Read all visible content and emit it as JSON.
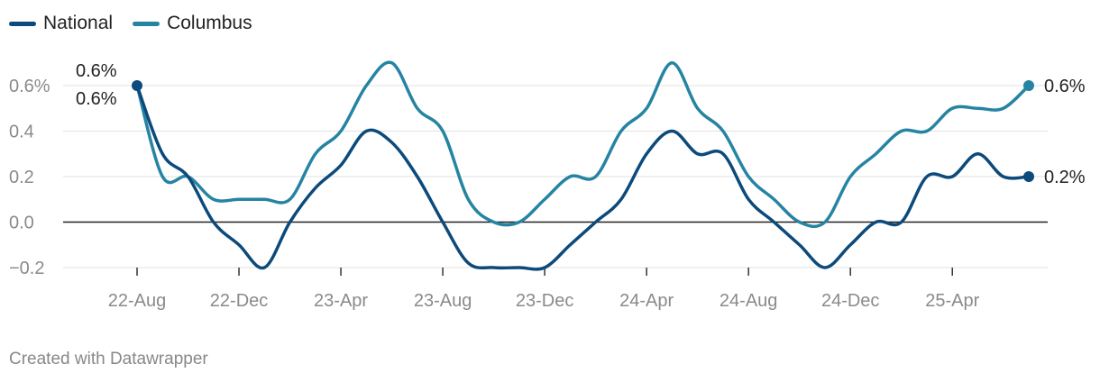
{
  "legend": [
    {
      "name": "National",
      "color": "#0c4a7b"
    },
    {
      "name": "Columbus",
      "color": "#2684a3"
    }
  ],
  "credit": "Created with Datawrapper",
  "chart_data": {
    "type": "line",
    "x_unit": "month",
    "x_ticks": [
      {
        "value": "2022-08",
        "label": "22-Aug"
      },
      {
        "value": "2022-12",
        "label": "22-Dec"
      },
      {
        "value": "2023-04",
        "label": "23-Apr"
      },
      {
        "value": "2023-08",
        "label": "23-Aug"
      },
      {
        "value": "2023-12",
        "label": "23-Dec"
      },
      {
        "value": "2024-04",
        "label": "24-Apr"
      },
      {
        "value": "2024-08",
        "label": "24-Aug"
      },
      {
        "value": "2024-12",
        "label": "24-Dec"
      },
      {
        "value": "2025-04",
        "label": "25-Apr"
      }
    ],
    "y_ticks": [
      {
        "value": -0.2,
        "label": "−0.2"
      },
      {
        "value": 0.0,
        "label": "0.0"
      },
      {
        "value": 0.2,
        "label": "0.2"
      },
      {
        "value": 0.4,
        "label": "0.4"
      },
      {
        "value": 0.6,
        "label": "0.6%"
      }
    ],
    "ylim": [
      -0.2,
      0.6
    ],
    "x": [
      "2022-08",
      "2022-09",
      "2022-10",
      "2022-11",
      "2022-12",
      "2023-01",
      "2023-02",
      "2023-03",
      "2023-04",
      "2023-05",
      "2023-06",
      "2023-07",
      "2023-08",
      "2023-09",
      "2023-10",
      "2023-11",
      "2023-12",
      "2024-01",
      "2024-02",
      "2024-03",
      "2024-04",
      "2024-05",
      "2024-06",
      "2024-07",
      "2024-08",
      "2024-09",
      "2024-10",
      "2024-11",
      "2024-12",
      "2025-01",
      "2025-02",
      "2025-03",
      "2025-04",
      "2025-05",
      "2025-06",
      "2025-07"
    ],
    "series": [
      {
        "name": "National",
        "color": "#0c4a7b",
        "values": [
          0.6,
          0.3,
          0.2,
          0.0,
          -0.1,
          -0.2,
          0.0,
          0.15,
          0.25,
          0.4,
          0.35,
          0.2,
          0.0,
          -0.18,
          -0.2,
          -0.2,
          -0.2,
          -0.1,
          0.0,
          0.1,
          0.3,
          0.4,
          0.3,
          0.3,
          0.1,
          0.0,
          -0.1,
          -0.2,
          -0.1,
          0.0,
          0.0,
          0.2,
          0.2,
          0.3,
          0.2,
          0.2
        ],
        "start_label": "0.6%",
        "end_label": "0.2%"
      },
      {
        "name": "Columbus",
        "color": "#2684a3",
        "values": [
          0.6,
          0.2,
          0.2,
          0.1,
          0.1,
          0.1,
          0.1,
          0.3,
          0.4,
          0.6,
          0.7,
          0.5,
          0.4,
          0.1,
          0.0,
          0.0,
          0.1,
          0.2,
          0.2,
          0.4,
          0.5,
          0.7,
          0.5,
          0.4,
          0.2,
          0.1,
          0.0,
          0.0,
          0.2,
          0.3,
          0.4,
          0.4,
          0.5,
          0.5,
          0.5,
          0.6
        ],
        "start_label": "0.6%",
        "end_label": "0.6%"
      }
    ],
    "grid": true
  }
}
